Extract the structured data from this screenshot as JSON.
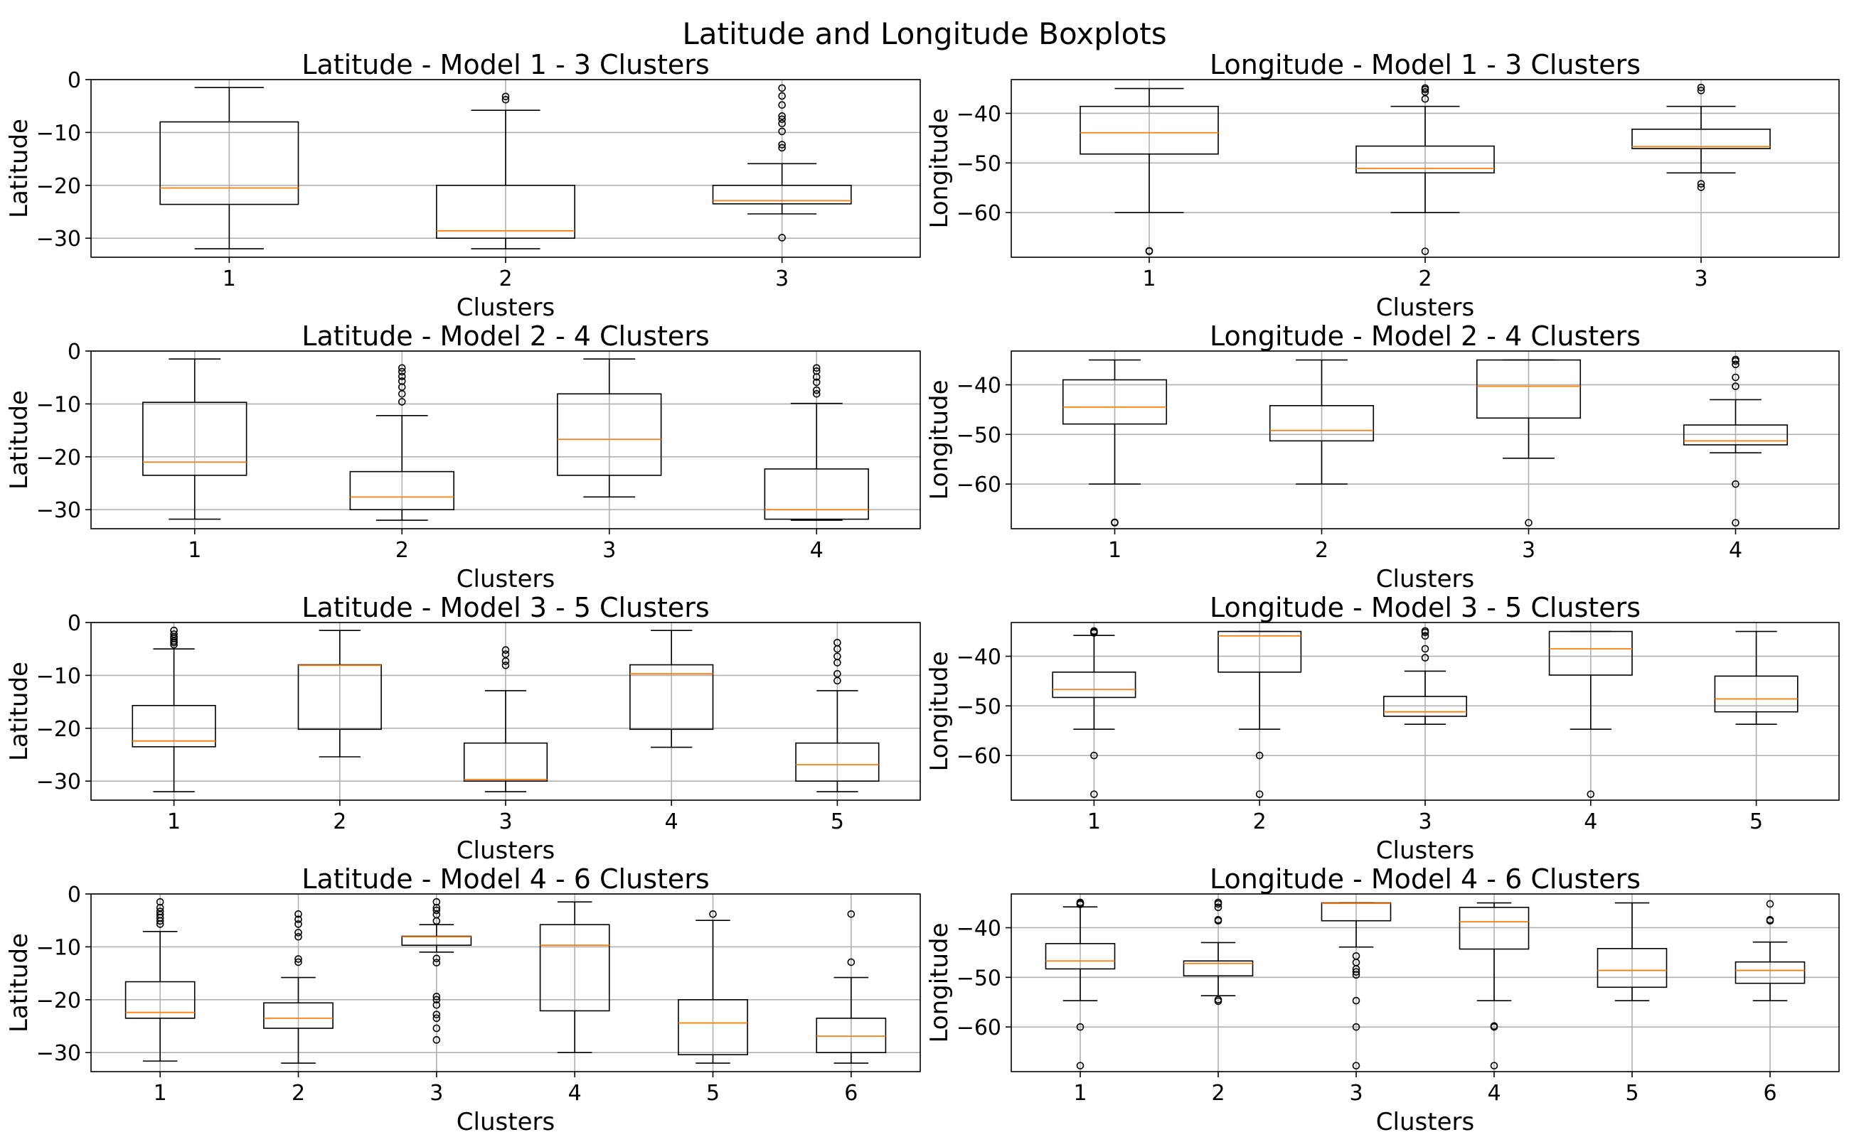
{
  "suptitle": "Latitude and Longitude Boxplots",
  "style": {
    "median_color": "#ff7f0e",
    "box_color": "#000000",
    "grid_color": "#b0b0b0",
    "flier_color": "#000000"
  },
  "chart_data": [
    {
      "type": "boxplot",
      "title": "Latitude - Model 1 - 3 Clusters",
      "xlabel": "Clusters",
      "ylabel": "Latitude",
      "ylim": [
        -33.6,
        0.0
      ],
      "yticks": [
        0,
        -10,
        -20,
        -30
      ],
      "grid": true,
      "categories": [
        "1",
        "2",
        "3"
      ],
      "boxes": [
        {
          "whislo": -32.0,
          "q1": -23.6,
          "med": -20.5,
          "q3": -8.0,
          "whishi": -1.5,
          "fliers": []
        },
        {
          "whislo": -32.0,
          "q1": -30.0,
          "med": -28.6,
          "q3": -20.0,
          "whishi": -5.8,
          "fliers": [
            -3.8,
            -3.2
          ]
        },
        {
          "whislo": -25.4,
          "q1": -23.5,
          "med": -22.9,
          "q3": -20.0,
          "whishi": -15.9,
          "fliers": [
            -29.9,
            -12.9,
            -12.3,
            -9.8,
            -8.3,
            -7.5,
            -6.9,
            -4.8,
            -3.1,
            -1.6
          ]
        }
      ]
    },
    {
      "type": "boxplot",
      "title": "Longitude - Model 1 - 3 Clusters",
      "xlabel": "Clusters",
      "ylabel": "Longitude",
      "ylim": [
        -69.0,
        -33.2
      ],
      "yticks": [
        -40,
        -50,
        -60
      ],
      "grid": true,
      "categories": [
        "1",
        "2",
        "3"
      ],
      "boxes": [
        {
          "whislo": -60.0,
          "q1": -48.2,
          "med": -43.9,
          "q3": -38.6,
          "whishi": -35.0,
          "fliers": [
            -67.8,
            -67.7
          ]
        },
        {
          "whislo": -60.0,
          "q1": -52.0,
          "med": -51.1,
          "q3": -46.6,
          "whishi": -38.6,
          "fliers": [
            -67.8,
            -37.1,
            -35.7,
            -35.2,
            -34.9
          ]
        },
        {
          "whislo": -52.0,
          "q1": -47.1,
          "med": -46.7,
          "q3": -43.2,
          "whishi": -38.6,
          "fliers": [
            -54.9,
            -54.2,
            -35.4,
            -34.8
          ]
        }
      ]
    },
    {
      "type": "boxplot",
      "title": "Latitude - Model 2 - 4 Clusters",
      "xlabel": "Clusters",
      "ylabel": "Latitude",
      "ylim": [
        -33.6,
        0.0
      ],
      "yticks": [
        0,
        -10,
        -20,
        -30
      ],
      "grid": true,
      "categories": [
        "1",
        "2",
        "3",
        "4"
      ],
      "boxes": [
        {
          "whislo": -31.8,
          "q1": -23.5,
          "med": -21.0,
          "q3": -9.7,
          "whishi": -1.5,
          "fliers": []
        },
        {
          "whislo": -32.0,
          "q1": -30.0,
          "med": -27.6,
          "q3": -22.8,
          "whishi": -12.2,
          "fliers": [
            -9.6,
            -8.1,
            -6.8,
            -5.7,
            -4.8,
            -3.9,
            -3.2
          ]
        },
        {
          "whislo": -27.6,
          "q1": -23.5,
          "med": -16.7,
          "q3": -8.1,
          "whishi": -1.5,
          "fliers": []
        },
        {
          "whislo": -32.0,
          "q1": -31.8,
          "med": -30.0,
          "q3": -22.3,
          "whishi": -9.9,
          "fliers": [
            -8.1,
            -7.4,
            -5.9,
            -4.9,
            -3.8,
            -3.2
          ]
        }
      ]
    },
    {
      "type": "boxplot",
      "title": "Longitude - Model 2 - 4 Clusters",
      "xlabel": "Clusters",
      "ylabel": "Longitude",
      "ylim": [
        -69.0,
        -33.2
      ],
      "yticks": [
        -40,
        -50,
        -60
      ],
      "grid": true,
      "categories": [
        "1",
        "2",
        "3",
        "4"
      ],
      "boxes": [
        {
          "whislo": -60.0,
          "q1": -47.9,
          "med": -44.5,
          "q3": -39.0,
          "whishi": -35.0,
          "fliers": [
            -67.8,
            -67.7
          ]
        },
        {
          "whislo": -60.0,
          "q1": -51.3,
          "med": -49.2,
          "q3": -44.2,
          "whishi": -35.0,
          "fliers": []
        },
        {
          "whislo": -54.8,
          "q1": -46.7,
          "med": -40.3,
          "q3": -35.0,
          "whishi": -35.0,
          "fliers": [
            -67.8
          ]
        },
        {
          "whislo": -53.7,
          "q1": -52.1,
          "med": -51.3,
          "q3": -48.1,
          "whishi": -43.0,
          "fliers": [
            -67.8,
            -60.0,
            -40.3,
            -38.5,
            -35.9,
            -35.2,
            -34.9
          ]
        }
      ]
    },
    {
      "type": "boxplot",
      "title": "Latitude - Model 3 - 5 Clusters",
      "xlabel": "Clusters",
      "ylabel": "Latitude",
      "ylim": [
        -33.6,
        0.0
      ],
      "yticks": [
        0,
        -10,
        -20,
        -30
      ],
      "grid": true,
      "categories": [
        "1",
        "2",
        "3",
        "4",
        "5"
      ],
      "boxes": [
        {
          "whislo": -32.0,
          "q1": -23.5,
          "med": -22.4,
          "q3": -15.7,
          "whishi": -5.0,
          "fliers": [
            -4.2,
            -3.8,
            -3.5,
            -3.0,
            -2.7,
            -2.2,
            -1.5
          ]
        },
        {
          "whislo": -25.4,
          "q1": -20.2,
          "med": -8.1,
          "q3": -8.0,
          "whishi": -1.5,
          "fliers": []
        },
        {
          "whislo": -32.0,
          "q1": -30.0,
          "med": -29.7,
          "q3": -22.8,
          "whishi": -12.9,
          "fliers": [
            -8.1,
            -7.3,
            -6.0,
            -5.2
          ]
        },
        {
          "whislo": -23.6,
          "q1": -20.2,
          "med": -9.7,
          "q3": -8.0,
          "whishi": -1.5,
          "fliers": []
        },
        {
          "whislo": -32.0,
          "q1": -30.0,
          "med": -26.9,
          "q3": -22.8,
          "whishi": -12.9,
          "fliers": [
            -11.0,
            -9.7,
            -7.6,
            -6.4,
            -5.0,
            -3.8
          ]
        }
      ]
    },
    {
      "type": "boxplot",
      "title": "Longitude - Model 3 - 5 Clusters",
      "xlabel": "Clusters",
      "ylabel": "Longitude",
      "ylim": [
        -69.0,
        -33.2
      ],
      "yticks": [
        -40,
        -50,
        -60
      ],
      "grid": true,
      "categories": [
        "1",
        "2",
        "3",
        "4",
        "5"
      ],
      "boxes": [
        {
          "whislo": -54.7,
          "q1": -48.3,
          "med": -46.7,
          "q3": -43.2,
          "whishi": -35.8,
          "fliers": [
            -67.8,
            -60.0,
            -35.3,
            -35.1,
            -34.9
          ]
        },
        {
          "whislo": -54.7,
          "q1": -43.2,
          "med": -35.9,
          "q3": -35.0,
          "whishi": -35.0,
          "fliers": [
            -67.8,
            -60.0
          ]
        },
        {
          "whislo": -53.7,
          "q1": -52.1,
          "med": -51.2,
          "q3": -48.1,
          "whishi": -43.0,
          "fliers": [
            -40.3,
            -38.5,
            -35.9,
            -35.2,
            -34.9
          ]
        },
        {
          "whislo": -54.7,
          "q1": -43.8,
          "med": -38.5,
          "q3": -35.0,
          "whishi": -35.0,
          "fliers": [
            -67.8
          ]
        },
        {
          "whislo": -53.7,
          "q1": -51.2,
          "med": -48.6,
          "q3": -44.0,
          "whishi": -35.0,
          "fliers": []
        }
      ]
    },
    {
      "type": "boxplot",
      "title": "Latitude - Model 4 - 6 Clusters",
      "xlabel": "Clusters",
      "ylabel": "Latitude",
      "ylim": [
        -33.6,
        0.0
      ],
      "yticks": [
        0,
        -10,
        -20,
        -30
      ],
      "grid": true,
      "categories": [
        "1",
        "2",
        "3",
        "4",
        "5",
        "6"
      ],
      "boxes": [
        {
          "whislo": -31.6,
          "q1": -23.5,
          "med": -22.4,
          "q3": -16.6,
          "whishi": -7.1,
          "fliers": [
            -5.7,
            -5.1,
            -4.5,
            -3.9,
            -3.3,
            -2.6,
            -1.5
          ]
        },
        {
          "whislo": -32.0,
          "q1": -25.4,
          "med": -23.5,
          "q3": -20.6,
          "whishi": -15.8,
          "fliers": [
            -12.9,
            -12.3,
            -8.1,
            -7.3,
            -5.7,
            -4.8,
            -3.8
          ]
        },
        {
          "whislo": -11.0,
          "q1": -9.7,
          "med": -8.1,
          "q3": -8.0,
          "whishi": -5.8,
          "fliers": [
            -27.6,
            -25.4,
            -23.5,
            -22.8,
            -21.0,
            -20.0,
            -19.4,
            -13.0,
            -12.2,
            -5.1,
            -3.9,
            -3.1,
            -2.6,
            -1.5
          ]
        },
        {
          "whislo": -30.0,
          "q1": -22.1,
          "med": -9.7,
          "q3": -5.8,
          "whishi": -1.5,
          "fliers": []
        },
        {
          "whislo": -32.0,
          "q1": -30.4,
          "med": -24.4,
          "q3": -20.0,
          "whishi": -5.0,
          "fliers": [
            -3.8
          ]
        },
        {
          "whislo": -32.0,
          "q1": -30.0,
          "med": -26.9,
          "q3": -23.5,
          "whishi": -15.8,
          "fliers": [
            -12.9,
            -3.8
          ]
        }
      ]
    },
    {
      "type": "boxplot",
      "title": "Longitude - Model 4 - 6 Clusters",
      "xlabel": "Clusters",
      "ylabel": "Longitude",
      "ylim": [
        -69.0,
        -33.2
      ],
      "yticks": [
        -40,
        -50,
        -60
      ],
      "grid": true,
      "categories": [
        "1",
        "2",
        "3",
        "4",
        "5",
        "6"
      ],
      "boxes": [
        {
          "whislo": -54.7,
          "q1": -48.3,
          "med": -46.7,
          "q3": -43.2,
          "whishi": -35.8,
          "fliers": [
            -67.8,
            -60.0,
            -35.3,
            -35.1,
            -34.9
          ]
        },
        {
          "whislo": -53.7,
          "q1": -49.7,
          "med": -47.2,
          "q3": -46.7,
          "whishi": -43.0,
          "fliers": [
            -54.8,
            -54.5,
            -38.6,
            -38.4,
            -35.9,
            -35.2,
            -34.9
          ]
        },
        {
          "whislo": -43.9,
          "q1": -38.6,
          "med": -35.1,
          "q3": -35.0,
          "whishi": -35.0,
          "fliers": [
            -67.8,
            -60.0,
            -54.7,
            -49.5,
            -48.9,
            -48.3,
            -47.0,
            -45.7
          ]
        },
        {
          "whislo": -54.7,
          "q1": -44.3,
          "med": -38.8,
          "q3": -35.9,
          "whishi": -35.0,
          "fliers": [
            -67.8,
            -60.0,
            -59.8
          ]
        },
        {
          "whislo": -54.7,
          "q1": -52.0,
          "med": -48.6,
          "q3": -44.2,
          "whishi": -35.0,
          "fliers": []
        },
        {
          "whislo": -54.7,
          "q1": -51.2,
          "med": -48.6,
          "q3": -46.9,
          "whishi": -42.9,
          "fliers": [
            -38.6,
            -38.4,
            -35.2
          ]
        }
      ]
    }
  ]
}
